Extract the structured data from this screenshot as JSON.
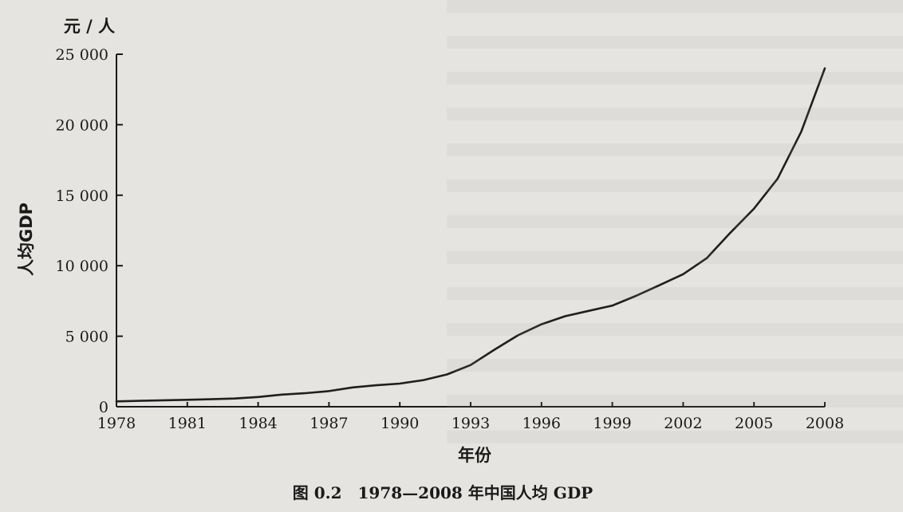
{
  "chart_data": {
    "type": "line",
    "caption": "图 0.2　1978—2008 年中国人均 GDP",
    "unit_label": "元 / 人",
    "ylabel": "人均GDP",
    "xlabel": "年份",
    "xlim": [
      1978,
      2008
    ],
    "ylim": [
      0,
      25000
    ],
    "x_ticks": [
      1978,
      1981,
      1984,
      1987,
      1990,
      1993,
      1996,
      1999,
      2002,
      2005,
      2008
    ],
    "x_tick_labels": [
      "1978",
      "1981",
      "1984",
      "1987",
      "1990",
      "1993",
      "1996",
      "1999",
      "2002",
      "2005",
      "2008"
    ],
    "y_ticks": [
      0,
      5000,
      10000,
      15000,
      20000,
      25000
    ],
    "y_tick_labels": [
      "0",
      "5 000",
      "10 000",
      "15 000",
      "20 000",
      "25 000"
    ],
    "grid": false,
    "series": [
      {
        "x": [
          1978,
          1979,
          1980,
          1981,
          1982,
          1983,
          1984,
          1985,
          1986,
          1987,
          1988,
          1989,
          1990,
          1991,
          1992,
          1993,
          1994,
          1995,
          1996,
          1997,
          1998,
          1999,
          2000,
          2001,
          2002,
          2003,
          2004,
          2005,
          2006,
          2007,
          2008
        ],
        "values": [
          380,
          420,
          460,
          490,
          530,
          580,
          690,
          860,
          960,
          1110,
          1370,
          1520,
          1640,
          1890,
          2290,
          2960,
          4040,
          5060,
          5850,
          6420,
          6800,
          7170,
          7860,
          8620,
          9400,
          10540,
          12340,
          14050,
          16170,
          19500,
          24000
        ]
      }
    ],
    "line_color": "#1f1f1f"
  }
}
